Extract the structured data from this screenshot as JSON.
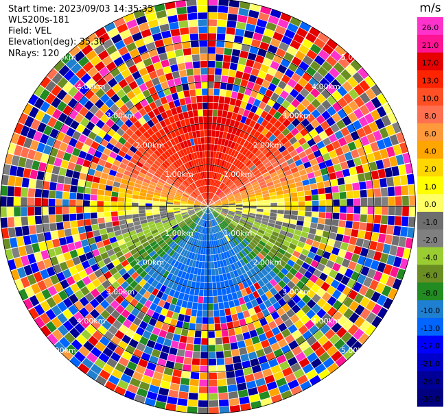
{
  "header": {
    "start_time": "Start time: 2023/09/03 14:35:35",
    "instrument": "WLS200s-181",
    "field": "Field: VEL",
    "elevation": "Elevation(deg): 35.30",
    "nrays": "NRays: 120"
  },
  "chart_data": {
    "type": "heatmap",
    "projection": "polar PPI",
    "field": "VEL",
    "nrays": 120,
    "elevation_deg": 35.3,
    "range_rings_km": [
      1.0,
      2.0,
      3.0,
      4.0,
      5.0
    ],
    "ring_label": "km",
    "ring_label_decimals": 2,
    "colorbar": {
      "unit": "m/s",
      "tick_labels": [
        "26.0",
        "21.0",
        "17.0",
        "13.0",
        "10.0",
        "8.0",
        "6.0",
        "4.0",
        "2.0",
        "1.0",
        "0.0",
        "-1.0",
        "-2.0",
        "-4.0",
        "-6.0",
        "-8.0",
        "-10.0",
        "-13.0",
        "-17.0",
        "-21.0",
        "-26.0",
        "-30.0"
      ],
      "colors": [
        "#ff33cc",
        "#ff1493",
        "#e60000",
        "#ff2400",
        "#ff4f24",
        "#ff7050",
        "#ff9a3c",
        "#ffa500",
        "#ffd700",
        "#ffff00",
        "#ffff66",
        "#6e6e6e",
        "#808080",
        "#9acd32",
        "#6b8e23",
        "#228b22",
        "#1f7fd0",
        "#0066ff",
        "#0000ff",
        "#0000cc",
        "#000099",
        "#000080"
      ]
    },
    "pattern": "Velocity field: positive (warm colors) toward north, near-zero gray along east-west axis, negative (green/blue) toward south; outer gates noisy (random colors)."
  }
}
